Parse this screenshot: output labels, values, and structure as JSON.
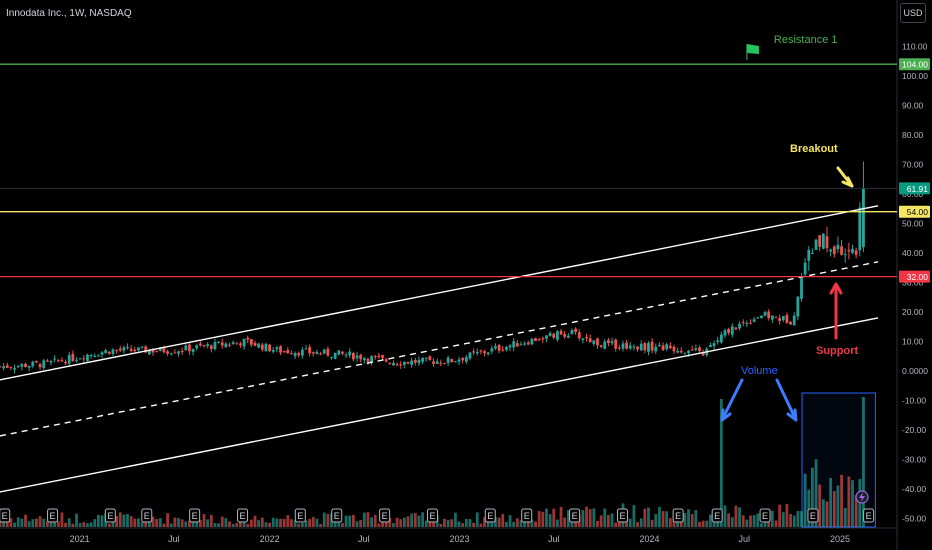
{
  "header": {
    "symbol_title": "Innodata Inc., 1W, NASDAQ",
    "currency_button": "USD"
  },
  "chart_data": {
    "type": "candlestick",
    "title": "Innodata Inc., 1W, NASDAQ",
    "interval": "1W",
    "exchange": "NASDAQ",
    "currency": "USD",
    "y_axis": {
      "ylim": [
        -50,
        115
      ],
      "tick_labels": [
        "110.00",
        "100.00",
        "90.00",
        "80.00",
        "70.00",
        "60.00",
        "50.00",
        "40.00",
        "30.00",
        "20.00",
        "10.00",
        "0.0000",
        "-10.00",
        "-20.00",
        "-30.00",
        "-40.00",
        "-50.00"
      ],
      "tick_values": [
        110,
        100,
        90,
        80,
        70,
        60,
        50,
        40,
        30,
        20,
        10,
        0,
        -10,
        -20,
        -30,
        -40,
        -50
      ]
    },
    "x_axis": {
      "tick_labels": [
        "2021",
        "Jul",
        "2022",
        "Jul",
        "2023",
        "Jul",
        "2024",
        "Jul",
        "2025"
      ],
      "tick_dates": [
        "2021-01-01",
        "2021-07-01",
        "2022-01-01",
        "2022-07-01",
        "2023-01-01",
        "2023-07-01",
        "2024-01-01",
        "2024-07-01",
        "2025-01-01"
      ]
    },
    "price_key_points": [
      {
        "date": "2020-08-01",
        "close": 1.5
      },
      {
        "date": "2020-11-01",
        "close": 2.5
      },
      {
        "date": "2021-01-15",
        "close": 5.5
      },
      {
        "date": "2021-03-01",
        "close": 7
      },
      {
        "date": "2021-07-01",
        "close": 7
      },
      {
        "date": "2021-11-15",
        "close": 10
      },
      {
        "date": "2022-01-15",
        "close": 7
      },
      {
        "date": "2022-06-01",
        "close": 5.5
      },
      {
        "date": "2022-09-01",
        "close": 3
      },
      {
        "date": "2022-12-15",
        "close": 3.5
      },
      {
        "date": "2023-03-01",
        "close": 7
      },
      {
        "date": "2023-06-01",
        "close": 11
      },
      {
        "date": "2023-08-01",
        "close": 13
      },
      {
        "date": "2023-10-01",
        "close": 9
      },
      {
        "date": "2024-02-01",
        "close": 8
      },
      {
        "date": "2024-04-15",
        "close": 6
      },
      {
        "date": "2024-06-01",
        "close": 14
      },
      {
        "date": "2024-08-01",
        "close": 19
      },
      {
        "date": "2024-10-01",
        "close": 17
      },
      {
        "date": "2024-11-01",
        "close": 40
      },
      {
        "date": "2024-12-01",
        "close": 44
      },
      {
        "date": "2025-01-01",
        "close": 40
      },
      {
        "date": "2025-02-01",
        "close": 42
      },
      {
        "date": "2025-02-15",
        "close": 61.91
      }
    ],
    "latest": {
      "close": 61.91,
      "high": 71,
      "label": "61.91"
    },
    "horizontal_levels": [
      {
        "value": 104,
        "label": "104.00",
        "color": "#4caf50",
        "annotation": "Resistance 1"
      },
      {
        "value": 54,
        "label": "54.00",
        "color": "#f5e663"
      },
      {
        "value": 32,
        "label": "32.00",
        "color": "#f23645"
      }
    ],
    "channel_lines": [
      {
        "style": "solid",
        "points": [
          {
            "date": "2020-08-01",
            "value": -3
          },
          {
            "date": "2025-03-15",
            "value": 56
          }
        ]
      },
      {
        "style": "dashed",
        "points": [
          {
            "date": "2020-08-01",
            "value": -22
          },
          {
            "date": "2025-03-15",
            "value": 37
          }
        ]
      },
      {
        "style": "solid",
        "points": [
          {
            "date": "2020-08-01",
            "value": -41
          },
          {
            "date": "2025-03-15",
            "value": 18
          }
        ]
      }
    ],
    "annotations": [
      {
        "text": "Breakout",
        "color": "#f5e663"
      },
      {
        "text": "Support",
        "color": "#f23645"
      },
      {
        "text": "Volume",
        "color": "#2962ff"
      },
      {
        "text": "Resistance 1",
        "color": "#4caf50"
      }
    ],
    "earnings_marker_label": "E",
    "earnings_dates": [
      "2020-08-10",
      "2020-11-10",
      "2021-03-01",
      "2021-05-10",
      "2021-08-10",
      "2021-11-10",
      "2022-03-01",
      "2022-05-10",
      "2022-08-10",
      "2022-11-10",
      "2023-03-01",
      "2023-05-10",
      "2023-08-10",
      "2023-11-10",
      "2024-02-25",
      "2024-05-10",
      "2024-08-10",
      "2024-11-10",
      "2025-02-25"
    ],
    "volume_note": "Relative weekly volume shown as bars at bottom of chart, with spikes in 2024-05 and from 2024-11 onward"
  }
}
